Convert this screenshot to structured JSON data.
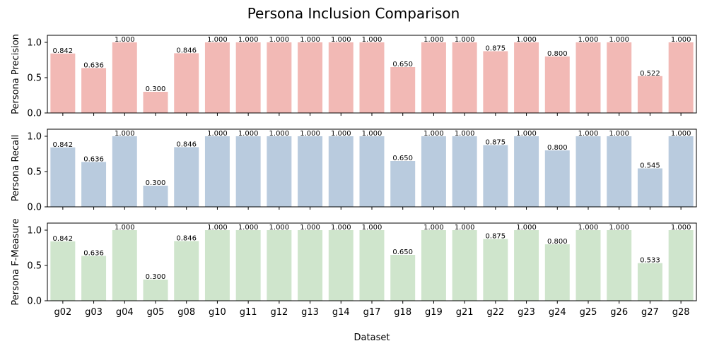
{
  "chart_data": {
    "type": "bar",
    "title": "Persona Inclusion Comparison",
    "xlabel": "Dataset",
    "categories": [
      "g02",
      "g03",
      "g04",
      "g05",
      "g08",
      "g10",
      "g11",
      "g12",
      "g13",
      "g14",
      "g17",
      "g18",
      "g19",
      "g21",
      "g22",
      "g23",
      "g24",
      "g25",
      "g26",
      "g27",
      "g28"
    ],
    "ylim": [
      0,
      1.1
    ],
    "yticks": [
      "0.0",
      "0.5",
      "1.0"
    ],
    "panels": [
      {
        "ylabel": "Persona Precision",
        "color": "#f2b9b5",
        "values": [
          0.842,
          0.636,
          1.0,
          0.3,
          0.846,
          1.0,
          1.0,
          1.0,
          1.0,
          1.0,
          1.0,
          0.65,
          1.0,
          1.0,
          0.875,
          1.0,
          0.8,
          1.0,
          1.0,
          0.522,
          1.0
        ],
        "labels": [
          "0.842",
          "0.636",
          "1.000",
          "0.300",
          "0.846",
          "1.000",
          "1.000",
          "1.000",
          "1.000",
          "1.000",
          "1.000",
          "0.650",
          "1.000",
          "1.000",
          "0.875",
          "1.000",
          "0.800",
          "1.000",
          "1.000",
          "0.522",
          "1.000"
        ]
      },
      {
        "ylabel": "Persona Recall",
        "color": "#b9cbde",
        "values": [
          0.842,
          0.636,
          1.0,
          0.3,
          0.846,
          1.0,
          1.0,
          1.0,
          1.0,
          1.0,
          1.0,
          0.65,
          1.0,
          1.0,
          0.875,
          1.0,
          0.8,
          1.0,
          1.0,
          0.545,
          1.0
        ],
        "labels": [
          "0.842",
          "0.636",
          "1.000",
          "0.300",
          "0.846",
          "1.000",
          "1.000",
          "1.000",
          "1.000",
          "1.000",
          "1.000",
          "0.650",
          "1.000",
          "1.000",
          "0.875",
          "1.000",
          "0.800",
          "1.000",
          "1.000",
          "0.545",
          "1.000"
        ]
      },
      {
        "ylabel": "Persona F-Measure",
        "color": "#cfe5cc",
        "values": [
          0.842,
          0.636,
          1.0,
          0.3,
          0.846,
          1.0,
          1.0,
          1.0,
          1.0,
          1.0,
          1.0,
          0.65,
          1.0,
          1.0,
          0.875,
          1.0,
          0.8,
          1.0,
          1.0,
          0.533,
          1.0
        ],
        "labels": [
          "0.842",
          "0.636",
          "1.000",
          "0.300",
          "0.846",
          "1.000",
          "1.000",
          "1.000",
          "1.000",
          "1.000",
          "1.000",
          "0.650",
          "1.000",
          "1.000",
          "0.875",
          "1.000",
          "0.800",
          "1.000",
          "1.000",
          "0.533",
          "1.000"
        ]
      }
    ]
  }
}
